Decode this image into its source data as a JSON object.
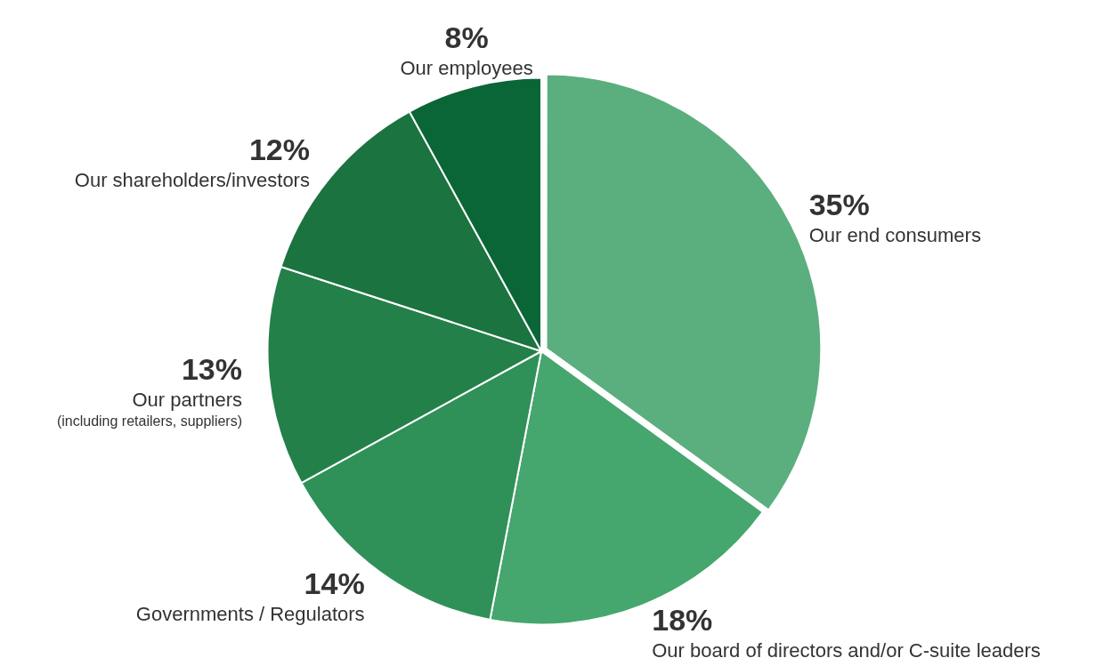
{
  "chart_data": {
    "type": "pie",
    "categories": [
      "Our end consumers",
      "Our board of directors and/or C-suite leaders",
      "Governments / Regulators",
      "Our partners\n(including retailers, suppliers)",
      "Our shareholders/investors",
      "Our employees"
    ],
    "values": [
      35,
      18,
      14,
      13,
      12,
      8
    ],
    "value_labels": [
      "35%",
      "18%",
      "14%",
      "13%",
      "12%",
      "8%"
    ],
    "colors": [
      "#5bae7e",
      "#45a66e",
      "#2f9157",
      "#238049",
      "#1b7340",
      "#0a6637"
    ],
    "legend": false
  }
}
